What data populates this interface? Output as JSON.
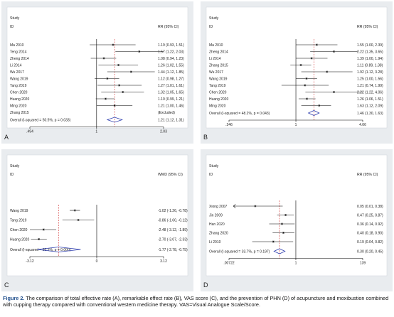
{
  "caption": {
    "figure_label": "Figure 2.",
    "text": "The comparison of total effective rate (A), remarkable effect rate (B), VAS score (C), and the prevention of PHN (D) of acupuncture and moxibustion combined with cupping therapy compared with conventional western medicine therapy. VAS=Visual Analogue Scale/Score."
  },
  "chart_data": [
    {
      "panel": "A",
      "type": "forest",
      "study_header": "Study",
      "id_header": "ID",
      "effect_header": "RR (95% CI)",
      "log_scale": true,
      "null_value": 1,
      "ticks": [
        {
          "value": 0.494,
          "label": ".494"
        },
        {
          "value": 1,
          "label": "1"
        },
        {
          "value": 2.03,
          "label": "2.03"
        }
      ],
      "xlim": [
        0.494,
        2.03
      ],
      "dashed_line": 1.21,
      "studies": [
        {
          "id": "Ma 2010",
          "est": 1.19,
          "lo": 0.93,
          "hi": 1.51,
          "label": "1.19 (0.93, 1.51)"
        },
        {
          "id": "Teng 2014",
          "est": 1.57,
          "lo": 1.22,
          "hi": 2.03,
          "label": "1.57 (1.22, 2.03)"
        },
        {
          "id": "Zheng 2014",
          "est": 1.08,
          "lo": 0.94,
          "hi": 1.23,
          "label": "1.08 (0.94, 1.23)"
        },
        {
          "id": "Li 2014",
          "est": 1.26,
          "lo": 1.02,
          "hi": 1.55,
          "label": "1.26 (1.02, 1.55)"
        },
        {
          "id": "Wu 2017",
          "est": 1.44,
          "lo": 1.12,
          "hi": 1.85,
          "label": "1.44 (1.12, 1.85)"
        },
        {
          "id": "Wang 2019",
          "est": 1.12,
          "lo": 0.98,
          "hi": 1.27,
          "label": "1.12 (0.98, 1.27)"
        },
        {
          "id": "Tang 2019",
          "est": 1.27,
          "lo": 1.01,
          "hi": 1.61,
          "label": "1.27 (1.01, 1.61)"
        },
        {
          "id": "Chen 2020",
          "est": 1.32,
          "lo": 1.05,
          "hi": 1.65,
          "label": "1.32 (1.05, 1.65)"
        },
        {
          "id": "Huang 2020",
          "est": 1.1,
          "lo": 0.99,
          "hi": 1.21,
          "label": "1.10 (0.99, 1.21)"
        },
        {
          "id": "Ming 2020",
          "est": 1.21,
          "lo": 1.0,
          "hi": 1.46,
          "label": "1.21 (1.00, 1.46)"
        },
        {
          "id": "Zhang 2015",
          "est": null,
          "lo": null,
          "hi": null,
          "label": "(Excluded)"
        }
      ],
      "overall": {
        "id": "Overall  (I-squared = 50.5%, p = 0.033)",
        "est": 1.21,
        "lo": 1.12,
        "hi": 1.31,
        "label": "1.21 (1.12, 1.31)"
      }
    },
    {
      "panel": "B",
      "type": "forest",
      "study_header": "Study",
      "id_header": "ID",
      "effect_header": "RR (95% CI)",
      "log_scale": true,
      "null_value": 1,
      "ticks": [
        {
          "value": 0.246,
          "label": ".246"
        },
        {
          "value": 1,
          "label": "1"
        },
        {
          "value": 4.06,
          "label": "4.06"
        }
      ],
      "xlim": [
        0.246,
        4.06
      ],
      "dashed_line": 1.46,
      "studies": [
        {
          "id": "Ma 2010",
          "est": 1.55,
          "lo": 1.0,
          "hi": 2.39,
          "label": "1.55 (1.00, 2.39)"
        },
        {
          "id": "Zheng 2014",
          "est": 2.22,
          "lo": 1.35,
          "hi": 3.65,
          "label": "2.22 (1.35, 3.65)"
        },
        {
          "id": "Li 2014",
          "est": 1.39,
          "lo": 1.0,
          "hi": 1.94,
          "label": "1.39 (1.00, 1.94)"
        },
        {
          "id": "Zhang 2015",
          "est": 1.11,
          "lo": 0.89,
          "hi": 1.38,
          "label": "1.11 (0.89, 1.38)"
        },
        {
          "id": "Wu 2017",
          "est": 1.92,
          "lo": 1.12,
          "hi": 3.28,
          "label": "1.92 (1.12, 3.28)"
        },
        {
          "id": "Wang 2019",
          "est": 1.25,
          "lo": 1.0,
          "hi": 1.56,
          "label": "1.25 (1.00, 1.56)"
        },
        {
          "id": "Tang 2019",
          "est": 1.21,
          "lo": 0.74,
          "hi": 1.99,
          "label": "1.21 (0.74, 1.99)"
        },
        {
          "id": "Chen 2020",
          "est": 2.22,
          "lo": 1.22,
          "hi": 4.06,
          "label": "2.22 (1.22, 4.06)"
        },
        {
          "id": "Huang 2020",
          "est": 1.26,
          "lo": 1.06,
          "hi": 1.51,
          "label": "1.26 (1.06, 1.51)"
        },
        {
          "id": "Ming 2020",
          "est": 1.63,
          "lo": 1.12,
          "hi": 2.09,
          "label": "1.63 (1.12, 2.09)"
        }
      ],
      "overall": {
        "id": "Overall  (I-squared = 48.2%, p = 0.043)",
        "est": 1.46,
        "lo": 1.3,
        "hi": 1.63,
        "label": "1.46 (1.30, 1.63)"
      }
    },
    {
      "panel": "C",
      "type": "forest",
      "study_header": "Study",
      "id_header": "ID",
      "effect_header": "WMD (95% CI)",
      "log_scale": false,
      "null_value": 0,
      "ticks": [
        {
          "value": -3.12,
          "label": "-3.12"
        },
        {
          "value": 0,
          "label": "0"
        },
        {
          "value": 3.12,
          "label": "3.12"
        }
      ],
      "xlim": [
        -3.12,
        3.12
      ],
      "dashed_line": -1.77,
      "studies": [
        {
          "id": "Wang 2019",
          "est": -1.02,
          "lo": -1.26,
          "hi": -0.78,
          "label": "-1.02 (-1.26, -0.78)"
        },
        {
          "id": "Tang 2019",
          "est": -0.86,
          "lo": -1.6,
          "hi": -0.12,
          "label": "-0.86 (-1.60, -0.12)"
        },
        {
          "id": "Chen 2020",
          "est": -2.48,
          "lo": -3.12,
          "hi": -1.89,
          "label": "-2.48 (-3.12, -1.89)"
        },
        {
          "id": "Huang 2020",
          "est": -2.7,
          "lo": -3.07,
          "hi": -2.33,
          "label": "-2.70 (-3.07, -2.33)"
        }
      ],
      "overall": {
        "id": "Overall  (I-squared = 95.3%, p = 0.000)",
        "est": -1.77,
        "lo": -2.78,
        "hi": -0.75,
        "label": "-1.77 (-2.78, -0.75)"
      }
    },
    {
      "panel": "D",
      "type": "forest",
      "study_header": "Study",
      "id_header": "ID",
      "effect_header": "RR (95% CI)",
      "log_scale": true,
      "null_value": 1,
      "ticks": [
        {
          "value": 0.00722,
          "label": ".00722"
        },
        {
          "value": 1,
          "label": "1"
        },
        {
          "value": 139,
          "label": "139"
        }
      ],
      "xlim": [
        0.00722,
        139
      ],
      "dashed_line": 0.3,
      "studies": [
        {
          "id": "Xiong 2007",
          "est": 0.05,
          "lo": 0.01,
          "hi": 0.38,
          "label": "0.05 (0.01, 0.38)",
          "arrow_left": true
        },
        {
          "id": "Jin 2009",
          "est": 0.47,
          "lo": 0.25,
          "hi": 0.87,
          "label": "0.47 (0.25, 0.87)"
        },
        {
          "id": "Han 2020",
          "est": 0.36,
          "lo": 0.14,
          "hi": 0.92,
          "label": "0.36 (0.14, 0.92)"
        },
        {
          "id": "Zhang 2020",
          "est": 0.4,
          "lo": 0.18,
          "hi": 0.9,
          "label": "0.40 (0.18, 0.90)"
        },
        {
          "id": "Li 2010",
          "est": 0.19,
          "lo": 0.04,
          "hi": 0.82,
          "label": "0.19 (0.04, 0.82)"
        }
      ],
      "overall": {
        "id": "Overall  (I-squared = 33.7%, p = 0.197)",
        "est": 0.3,
        "lo": 0.2,
        "hi": 0.45,
        "label": "0.30 (0.20, 0.45)"
      }
    }
  ]
}
